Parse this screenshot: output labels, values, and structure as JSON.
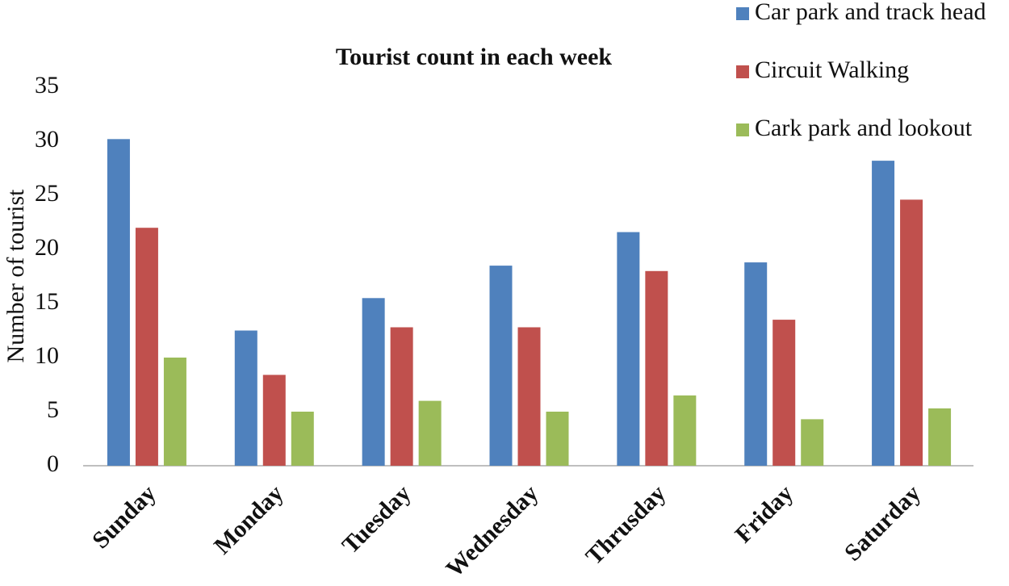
{
  "chart_data": {
    "type": "bar",
    "title": "Tourist count in each week",
    "y_label": "Number of tourist",
    "categories": [
      "Sunday",
      "Monday",
      "Tuesday",
      "Wednesday",
      "Thrusday",
      "Friday",
      "Saturday"
    ],
    "series": [
      {
        "name": "Car park and track head",
        "color": "#4f81bd",
        "values": [
          30.2,
          12.5,
          15.5,
          18.5,
          21.6,
          18.8,
          28.2
        ]
      },
      {
        "name": "Circuit Walking",
        "color": "#c0504d",
        "values": [
          22,
          8.4,
          12.8,
          12.8,
          18,
          13.5,
          24.6
        ]
      },
      {
        "name": "Cark park and lookout",
        "color": "#9bbb59",
        "values": [
          10,
          5,
          6,
          5,
          6.5,
          4.3,
          5.3
        ]
      }
    ],
    "ylim": [
      0,
      35
    ],
    "yticks": [
      0,
      5,
      10,
      15,
      20,
      25,
      30,
      35
    ],
    "grid": false
  }
}
